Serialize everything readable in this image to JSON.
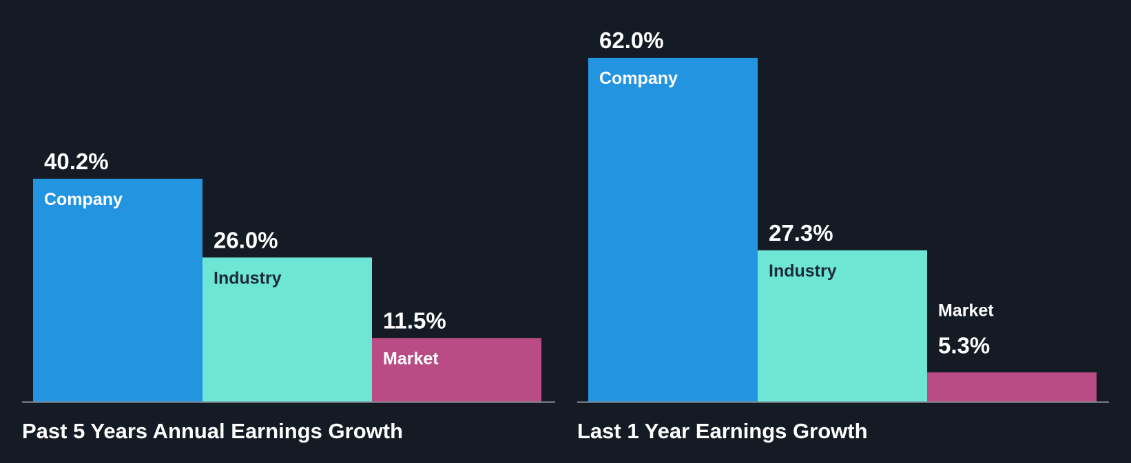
{
  "colors": {
    "background": "#151b24",
    "company": "#2394e0",
    "industry": "#6ee6d6",
    "market": "#b94b85",
    "baseline": "#8a9099",
    "text_light": "#ffffff",
    "text_dark": "#1e2a36"
  },
  "chart_data": [
    {
      "type": "bar",
      "title": "Past 5 Years Annual Earnings Growth",
      "categories": [
        "Company",
        "Industry",
        "Market"
      ],
      "values": [
        40.2,
        26.0,
        11.5
      ],
      "value_labels": [
        "40.2%",
        "26.0%",
        "11.5%"
      ],
      "unit": "%",
      "ylim": [
        0,
        62.0
      ],
      "grid": false,
      "legend": "none",
      "xlabel": "",
      "ylabel": ""
    },
    {
      "type": "bar",
      "title": "Last 1 Year Earnings Growth",
      "categories": [
        "Company",
        "Industry",
        "Market"
      ],
      "values": [
        62.0,
        27.3,
        5.3
      ],
      "value_labels": [
        "62.0%",
        "27.3%",
        "5.3%"
      ],
      "unit": "%",
      "ylim": [
        0,
        62.0
      ],
      "grid": false,
      "legend": "none",
      "xlabel": "",
      "ylabel": ""
    }
  ]
}
